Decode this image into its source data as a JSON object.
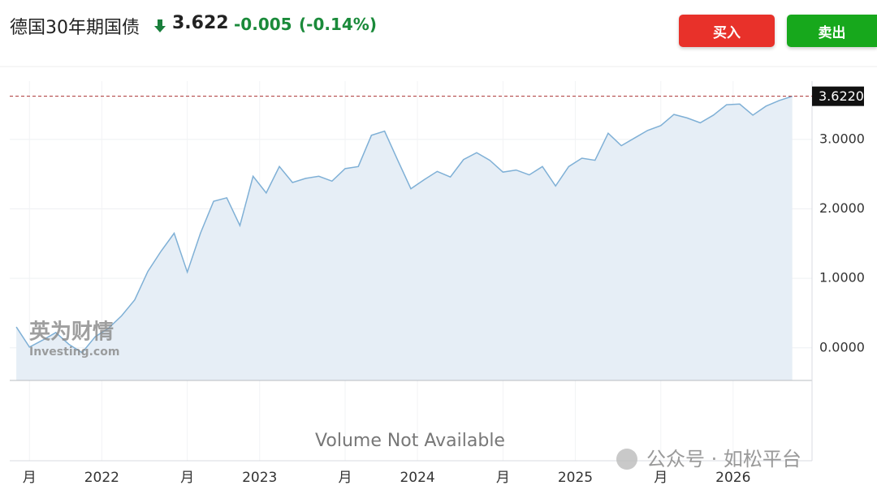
{
  "header": {
    "title": "德国30年期国债",
    "price": "3.622",
    "change": "-0.005",
    "change_pct": "(-0.14%)",
    "buy": "买入",
    "sell": "卖出"
  },
  "chart_data": {
    "type": "area",
    "x": [
      0,
      1,
      2,
      3,
      4,
      5,
      6,
      7,
      8,
      9,
      10,
      11,
      12,
      13,
      14,
      15,
      16,
      17,
      18,
      19,
      20,
      21,
      22,
      23,
      24,
      25,
      26,
      27,
      28,
      29,
      30,
      31,
      32,
      33,
      34,
      35,
      36,
      37,
      38,
      39,
      40,
      41,
      42,
      43,
      44,
      45,
      46,
      47,
      48,
      49,
      50,
      51,
      52,
      53,
      54,
      55,
      56,
      57,
      58,
      59
    ],
    "series": [
      {
        "color": "#7fb0d6",
        "values": [
          0.3,
          0.01,
          0.11,
          0.22,
          0.05,
          -0.07,
          0.16,
          0.28,
          0.46,
          0.69,
          1.1,
          1.39,
          1.65,
          1.09,
          1.65,
          2.11,
          2.16,
          1.76,
          2.47,
          2.23,
          2.61,
          2.38,
          2.44,
          2.47,
          2.4,
          2.58,
          2.61,
          3.06,
          3.12,
          2.7,
          2.29,
          2.42,
          2.54,
          2.46,
          2.71,
          2.81,
          2.7,
          2.53,
          2.56,
          2.49,
          2.61,
          2.33,
          2.61,
          2.73,
          2.7,
          3.09,
          2.91,
          3.02,
          3.13,
          3.2,
          3.36,
          3.31,
          3.24,
          3.35,
          3.5,
          3.51,
          3.35,
          3.48,
          3.56,
          3.622
        ]
      }
    ],
    "xlim": [
      -0.5,
      60.5
    ],
    "xticks": [
      {
        "value": 1,
        "label": "月"
      },
      {
        "value": 6.5,
        "label": "2022"
      },
      {
        "value": 13,
        "label": "月"
      },
      {
        "value": 18.5,
        "label": "2023"
      },
      {
        "value": 25,
        "label": "月"
      },
      {
        "value": 30.5,
        "label": "2024"
      },
      {
        "value": 37,
        "label": "月"
      },
      {
        "value": 42.5,
        "label": "2025"
      },
      {
        "value": 49,
        "label": "月"
      },
      {
        "value": 54.5,
        "label": "2026"
      }
    ],
    "ylim": [
      -0.47,
      3.84
    ],
    "yticks": [
      {
        "value": 0,
        "label": "0.0000"
      },
      {
        "value": 1,
        "label": "1.0000"
      },
      {
        "value": 2,
        "label": "2.0000"
      },
      {
        "value": 3,
        "label": "3.0000"
      }
    ],
    "price_tag": {
      "value": 3.622,
      "label": "3.6220"
    },
    "grid": true,
    "volume_note": "Volume Not Available",
    "watermark": "英为财情",
    "watermark_sub": "Investing.com",
    "overlay": "公众号 · 如松平台"
  }
}
